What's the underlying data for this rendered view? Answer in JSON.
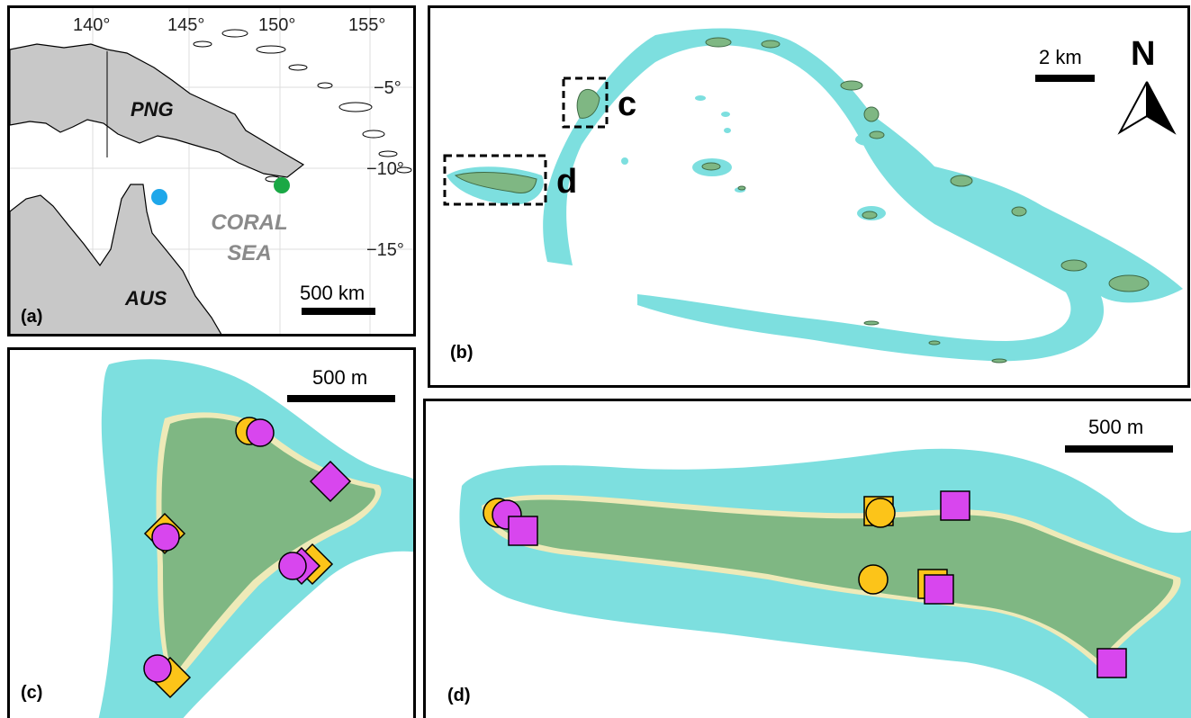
{
  "panels": {
    "a": {
      "label": "(a)",
      "lon_ticks": [
        "140°",
        "145°",
        "150°",
        "155°"
      ],
      "lat_ticks": [
        "−5°",
        "−10°",
        "−15°"
      ],
      "places": {
        "png": "PNG",
        "aus": "AUS"
      },
      "sea": {
        "line1": "CORAL",
        "line2": "SEA"
      },
      "scale_label": "500 km",
      "site_colors": {
        "blue": "#1ea7ea",
        "green": "#1aa845"
      }
    },
    "b": {
      "label": "(b)",
      "box_labels": {
        "c": "c",
        "d": "d"
      },
      "scale_label": "2 km",
      "north_label": "N"
    },
    "c": {
      "label": "(c)",
      "scale_label": "500 m"
    },
    "d": {
      "label": "(d)",
      "scale_label": "500 m"
    }
  },
  "colors": {
    "reef": "#7ddfdf",
    "island": "#7fb783",
    "beach": "#eeeab8",
    "land": "#c8c8c8",
    "marker_yellow": "#fcc419",
    "marker_magenta": "#d846ee"
  }
}
